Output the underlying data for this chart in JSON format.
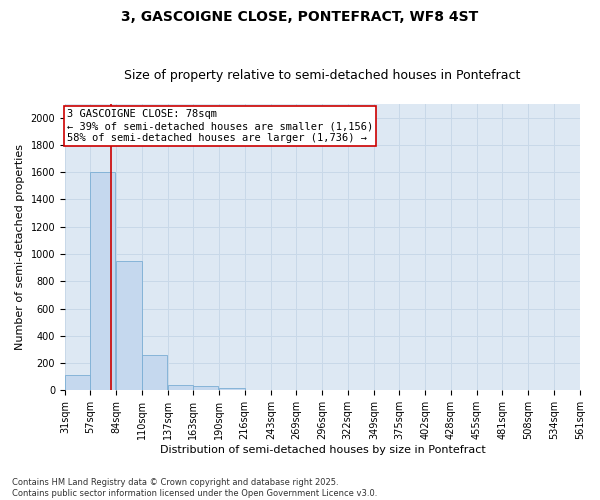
{
  "title": "3, GASCOIGNE CLOSE, PONTEFRACT, WF8 4ST",
  "subtitle": "Size of property relative to semi-detached houses in Pontefract",
  "xlabel": "Distribution of semi-detached houses by size in Pontefract",
  "ylabel": "Number of semi-detached properties",
  "bins": [
    31,
    57,
    84,
    110,
    137,
    163,
    190,
    216,
    243,
    269,
    296,
    322,
    349,
    375,
    402,
    428,
    455,
    481,
    508,
    534,
    561
  ],
  "bar_heights": [
    115,
    1600,
    950,
    260,
    40,
    35,
    20,
    0,
    0,
    0,
    0,
    0,
    0,
    0,
    0,
    0,
    0,
    0,
    0,
    0
  ],
  "bar_color": "#c5d8ee",
  "bar_edge_color": "#7aadd4",
  "property_size": 78,
  "red_line_color": "#cc0000",
  "annotation_text": "3 GASCOIGNE CLOSE: 78sqm\n← 39% of semi-detached houses are smaller (1,156)\n58% of semi-detached houses are larger (1,736) →",
  "annotation_box_color": "#ffffff",
  "annotation_box_edge": "#cc0000",
  "ylim": [
    0,
    2100
  ],
  "yticks": [
    0,
    200,
    400,
    600,
    800,
    1000,
    1200,
    1400,
    1600,
    1800,
    2000
  ],
  "grid_color": "#c8d8e8",
  "bg_color": "#dde8f3",
  "footer": "Contains HM Land Registry data © Crown copyright and database right 2025.\nContains public sector information licensed under the Open Government Licence v3.0.",
  "title_fontsize": 10,
  "subtitle_fontsize": 9,
  "label_fontsize": 8,
  "tick_fontsize": 7,
  "annotation_fontsize": 7.5,
  "footer_fontsize": 6
}
